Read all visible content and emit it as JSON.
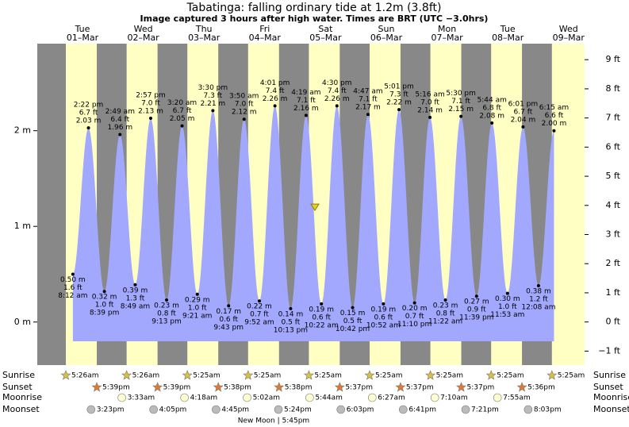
{
  "chart_data": {
    "type": "tide",
    "title": "Tabatinga: falling  ordinary tide at 1.2m (3.8ft)",
    "subtitle": "Image captured 3 hours after high water. Times are BRT (UTC −3.0hrs)",
    "current_height": 1.2,
    "ylim": [
      -0.45,
      2.91
    ],
    "yticks": [
      {
        "value": 0,
        "label": "0 m"
      },
      {
        "value": 1,
        "label": "1 m"
      },
      {
        "value": 2,
        "label": "2 m"
      }
    ],
    "y2lim": [
      -1.48,
      9.55
    ],
    "y2ticks": [
      {
        "value": -1,
        "label": "−1 ft"
      },
      {
        "value": 0,
        "label": "0 ft"
      },
      {
        "value": 1,
        "label": "1 ft"
      },
      {
        "value": 2,
        "label": "2 ft"
      },
      {
        "value": 3,
        "label": "3 ft"
      },
      {
        "value": 4,
        "label": "4 ft"
      },
      {
        "value": 5,
        "label": "5 ft"
      },
      {
        "value": 6,
        "label": "6 ft"
      },
      {
        "value": 7,
        "label": "7 ft"
      },
      {
        "value": 8,
        "label": "8 ft"
      },
      {
        "value": 9,
        "label": "9 ft"
      }
    ],
    "colors": {
      "night": "#888888",
      "day": "#ffffc4",
      "water": "#a3a8ff",
      "header": "#e00000"
    },
    "rows": {
      "sunrise": "Sunrise",
      "sunset": "Sunset",
      "moonrise": "Moonrise",
      "moonset": "Moonset"
    },
    "days": [
      {
        "weekday": "Tue",
        "date": "01–Mar",
        "sunrise": "5:26am",
        "sunset": "5:39pm",
        "moonset": "3:23pm",
        "tides": [
          {
            "time": "8:12 am",
            "height": 0.5,
            "label": "0.50 m",
            "feet": "1.6 ft"
          },
          {
            "time": "2:22 pm",
            "height": 2.03,
            "label": "2.03 m",
            "feet": "6.7 ft"
          },
          {
            "time": "8:39 pm",
            "height": 0.32,
            "label": "0.32 m",
            "feet": "1.0 ft"
          }
        ]
      },
      {
        "weekday": "Wed",
        "date": "02–Mar",
        "sunrise": "5:26am",
        "sunset": "5:39pm",
        "moonrise": "3:33am",
        "moonset": "4:05pm",
        "tides": [
          {
            "time": "2:49 am",
            "height": 1.96,
            "label": "1.96 m",
            "feet": "6.4 ft"
          },
          {
            "time": "8:49 am",
            "height": 0.39,
            "label": "0.39 m",
            "feet": "1.3 ft"
          },
          {
            "time": "2:57 pm",
            "height": 2.13,
            "label": "2.13 m",
            "feet": "7.0 ft"
          },
          {
            "time": "9:13 pm",
            "height": 0.23,
            "label": "0.23 m",
            "feet": "0.8 ft"
          }
        ]
      },
      {
        "weekday": "Thu",
        "date": "03–Mar",
        "sunrise": "5:25am",
        "sunset": "5:38pm",
        "moonrise": "4:18am",
        "moonset": "4:45pm",
        "tides": [
          {
            "time": "3:20 am",
            "height": 2.05,
            "label": "2.05 m",
            "feet": "6.7 ft"
          },
          {
            "time": "9:21 am",
            "height": 0.29,
            "label": "0.29 m",
            "feet": "1.0 ft"
          },
          {
            "time": "3:30 pm",
            "height": 2.21,
            "label": "2.21 m",
            "feet": "7.3 ft"
          },
          {
            "time": "9:43 pm",
            "height": 0.17,
            "label": "0.17 m",
            "feet": "0.6 ft"
          }
        ]
      },
      {
        "weekday": "Fri",
        "date": "04–Mar",
        "sunrise": "5:25am",
        "sunset": "5:38pm",
        "moonrise": "5:02am",
        "moonset": "5:24pm",
        "phase": "New Moon | 5:45pm",
        "tides": [
          {
            "time": "3:50 am",
            "height": 2.12,
            "label": "2.12 m",
            "feet": "7.0 ft"
          },
          {
            "time": "9:52 am",
            "height": 0.22,
            "label": "0.22 m",
            "feet": "0.7 ft"
          },
          {
            "time": "4:01 pm",
            "height": 2.26,
            "label": "2.26 m",
            "feet": "7.4 ft"
          },
          {
            "time": "10:13 pm",
            "height": 0.14,
            "label": "0.14 m",
            "feet": "0.5 ft"
          }
        ]
      },
      {
        "weekday": "Sat",
        "date": "05–Mar",
        "sunrise": "5:25am",
        "sunset": "5:37pm",
        "moonrise": "5:44am",
        "moonset": "6:03pm",
        "tides": [
          {
            "time": "4:19 am",
            "height": 2.16,
            "label": "2.16 m",
            "feet": "7.1 ft"
          },
          {
            "time": "10:22 am",
            "height": 0.19,
            "label": "0.19 m",
            "feet": "0.6 ft"
          },
          {
            "time": "4:30 pm",
            "height": 2.26,
            "label": "2.26 m",
            "feet": "7.4 ft"
          },
          {
            "time": "10:42 pm",
            "height": 0.15,
            "label": "0.15 m",
            "feet": "0.5 ft"
          }
        ]
      },
      {
        "weekday": "Sun",
        "date": "06–Mar",
        "sunrise": "5:25am",
        "sunset": "5:37pm",
        "moonrise": "6:27am",
        "moonset": "6:41pm",
        "tides": [
          {
            "time": "4:47 am",
            "height": 2.17,
            "label": "2.17 m",
            "feet": "7.1 ft"
          },
          {
            "time": "10:52 am",
            "height": 0.19,
            "label": "0.19 m",
            "feet": "0.6 ft"
          },
          {
            "time": "5:01 pm",
            "height": 2.22,
            "label": "2.22 m",
            "feet": "7.3 ft"
          },
          {
            "time": "11:10 pm",
            "height": 0.2,
            "label": "0.20 m",
            "feet": "0.7 ft"
          }
        ]
      },
      {
        "weekday": "Mon",
        "date": "07–Mar",
        "sunrise": "5:25am",
        "sunset": "5:37pm",
        "moonrise": "7:10am",
        "moonset": "7:21pm",
        "tides": [
          {
            "time": "5:16 am",
            "height": 2.14,
            "label": "2.14 m",
            "feet": "7.0 ft"
          },
          {
            "time": "11:22 am",
            "height": 0.23,
            "label": "0.23 m",
            "feet": "0.8 ft"
          },
          {
            "time": "5:30 pm",
            "height": 2.15,
            "label": "2.15 m",
            "feet": "7.1 ft"
          },
          {
            "time": "11:39 pm",
            "height": 0.27,
            "label": "0.27 m",
            "feet": "0.9 ft"
          }
        ]
      },
      {
        "weekday": "Tue",
        "date": "08–Mar",
        "sunrise": "5:25am",
        "sunset": "5:36pm",
        "moonrise": "7:55am",
        "moonset": "8:03pm",
        "tides": [
          {
            "time": "5:44 am",
            "height": 2.08,
            "label": "2.08 m",
            "feet": "6.8 ft"
          },
          {
            "time": "11:53 am",
            "height": 0.3,
            "label": "0.30 m",
            "feet": "1.0 ft"
          },
          {
            "time": "6:01 pm",
            "height": 2.04,
            "label": "2.04 m",
            "feet": "6.7 ft"
          }
        ]
      },
      {
        "weekday": "Wed",
        "date": "09–Mar",
        "sunrise": "5:25am",
        "tides": [
          {
            "time": "12:08 am",
            "height": 0.38,
            "label": "0.38 m",
            "feet": "1.2 ft"
          },
          {
            "time": "6:15 am",
            "height": 2.0,
            "label": "2.00 m",
            "feet": "6.6 ft"
          }
        ]
      }
    ]
  }
}
